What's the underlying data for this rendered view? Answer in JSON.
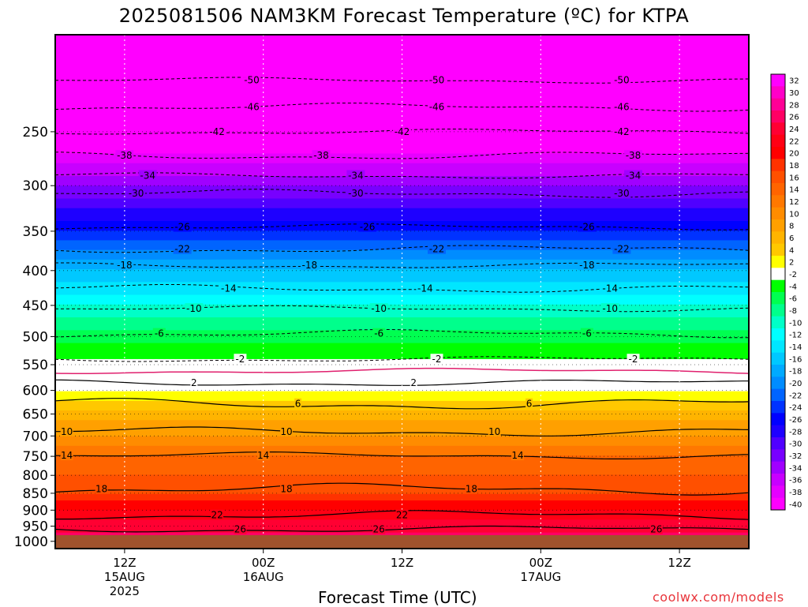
{
  "title": "2025081506 NAM3KM Forecast Temperature (ºC) for KTPA",
  "xlabel": "Forecast Time (UTC)",
  "credit": "coolwx.com/models",
  "colors": {
    "ground": "#a0522d",
    "freezing_line": "#e0206e",
    "frame": "#000000"
  },
  "chart_data": {
    "type": "heatmap",
    "title": "2025081506 NAM3KM Forecast Temperature (ºC) for KTPA",
    "xlabel": "Forecast Time (UTC)",
    "ylabel": "",
    "y_axis": "pressure (hPa), inverted, log-pressure",
    "ylim": [
      1025,
      180
    ],
    "xlim_hours_from_start": [
      0,
      60
    ],
    "y_ticks": [
      250,
      300,
      350,
      400,
      450,
      500,
      550,
      600,
      650,
      700,
      750,
      800,
      850,
      900,
      950,
      1000
    ],
    "x_ticks": [
      {
        "hour": 6,
        "lines": [
          "12Z",
          "15AUG",
          "2025"
        ]
      },
      {
        "hour": 18,
        "lines": [
          "00Z",
          "16AUG"
        ]
      },
      {
        "hour": 30,
        "lines": [
          "12Z"
        ]
      },
      {
        "hour": 42,
        "lines": [
          "00Z",
          "17AUG"
        ]
      },
      {
        "hour": 54,
        "lines": [
          "12Z"
        ]
      }
    ],
    "colorbar": {
      "labels": [
        32,
        30,
        28,
        26,
        24,
        22,
        20,
        18,
        16,
        14,
        12,
        10,
        8,
        6,
        4,
        2,
        -2,
        -4,
        -6,
        -8,
        -10,
        -12,
        -14,
        -16,
        -18,
        -20,
        -22,
        -24,
        -26,
        -28,
        -30,
        -32,
        -34,
        -36,
        -38,
        -40
      ],
      "colors": [
        "#ff00ff",
        "#ff00c8",
        "#ff0096",
        "#ff0064",
        "#ff0032",
        "#ff0014",
        "#ff0000",
        "#ff3200",
        "#ff5000",
        "#ff6400",
        "#ff7800",
        "#ff8c00",
        "#ffa000",
        "#ffb400",
        "#ffc800",
        "#ffff00",
        "#ffffff",
        "#00ff00",
        "#00ff50",
        "#00ff8c",
        "#00ffc8",
        "#00ffff",
        "#00e6ff",
        "#00c8ff",
        "#00aaff",
        "#008cff",
        "#0064ff",
        "#0032ff",
        "#0000ff",
        "#1e00ff",
        "#5000ff",
        "#7800ff",
        "#a000ff",
        "#c800ff",
        "#e600ff",
        "#ff00ff"
      ]
    },
    "profile": [
      {
        "p": 1000,
        "t": 28.0
      },
      {
        "p": 950,
        "t": 25.0
      },
      {
        "p": 900,
        "t": 22.0
      },
      {
        "p": 850,
        "t": 18.0
      },
      {
        "p": 800,
        "t": 16.0
      },
      {
        "p": 750,
        "t": 14.0
      },
      {
        "p": 700,
        "t": 10.0
      },
      {
        "p": 650,
        "t": 7.0
      },
      {
        "p": 600,
        "t": 2.0
      },
      {
        "p": 550,
        "t": -1.0
      },
      {
        "p": 500,
        "t": -5.0
      },
      {
        "p": 450,
        "t": -10.0
      },
      {
        "p": 400,
        "t": -16.0
      },
      {
        "p": 350,
        "t": -24.0
      },
      {
        "p": 300,
        "t": -32.0
      },
      {
        "p": 250,
        "t": -42.0
      },
      {
        "p": 200,
        "t": -50.0
      }
    ],
    "contours_positive": [
      {
        "value": 26,
        "p": 960,
        "labels_at_hours": [
          16,
          28,
          52
        ]
      },
      {
        "value": 22,
        "p": 915,
        "labels_at_hours": [
          14,
          30
        ]
      },
      {
        "value": 18,
        "p": 838,
        "labels_at_hours": [
          4,
          20,
          36
        ]
      },
      {
        "value": 14,
        "p": 748,
        "labels_at_hours": [
          1,
          18,
          40
        ]
      },
      {
        "value": 10,
        "p": 690,
        "labels_at_hours": [
          1,
          20,
          38
        ]
      },
      {
        "value": 6,
        "p": 628,
        "labels_at_hours": [
          21,
          41
        ]
      },
      {
        "value": 2,
        "p": 585,
        "labels_at_hours": [
          12,
          31
        ]
      }
    ],
    "contours_negative": [
      {
        "value": -2,
        "p": 540,
        "labels_at_hours": [
          16,
          33,
          50
        ]
      },
      {
        "value": -6,
        "p": 495,
        "labels_at_hours": [
          9,
          28,
          46
        ]
      },
      {
        "value": -10,
        "p": 455,
        "labels_at_hours": [
          12,
          28,
          48
        ]
      },
      {
        "value": -14,
        "p": 425,
        "labels_at_hours": [
          15,
          32,
          48
        ]
      },
      {
        "value": -18,
        "p": 393,
        "labels_at_hours": [
          6,
          22,
          46
        ]
      },
      {
        "value": -22,
        "p": 372,
        "labels_at_hours": [
          11,
          33,
          49
        ]
      },
      {
        "value": -26,
        "p": 345,
        "labels_at_hours": [
          11,
          27,
          46
        ]
      },
      {
        "value": -30,
        "p": 308,
        "labels_at_hours": [
          7,
          26,
          49
        ]
      },
      {
        "value": -34,
        "p": 290,
        "labels_at_hours": [
          8,
          26,
          50
        ]
      },
      {
        "value": -38,
        "p": 271,
        "labels_at_hours": [
          6,
          23,
          50
        ]
      },
      {
        "value": -42,
        "p": 250,
        "labels_at_hours": [
          14,
          30,
          49
        ]
      },
      {
        "value": -46,
        "p": 230,
        "labels_at_hours": [
          17,
          33,
          49
        ]
      },
      {
        "value": -50,
        "p": 210,
        "labels_at_hours": [
          17,
          33,
          49
        ]
      }
    ]
  }
}
